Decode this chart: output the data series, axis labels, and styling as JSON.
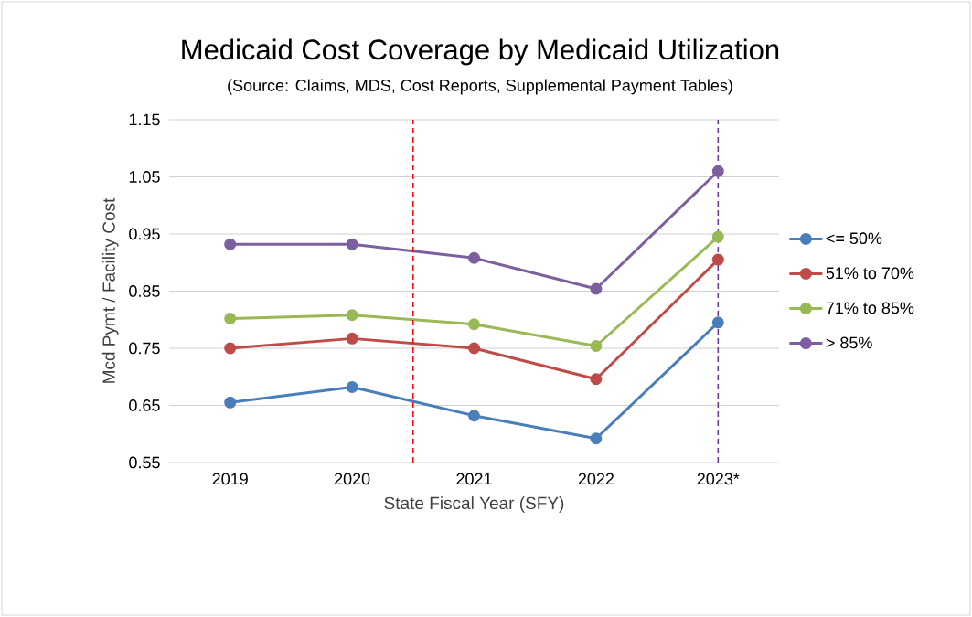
{
  "chart_data": {
    "type": "line",
    "title": "Medicaid Cost Coverage by Medicaid Utilization",
    "subtitle": "(Source: Claims, MDS, Cost Reports, Supplemental Payment Tables)",
    "xlabel": "State Fiscal Year (SFY)",
    "ylabel": "Mcd Pymt / Facility Cost",
    "x": [
      2019,
      2020,
      2021,
      2022,
      2023
    ],
    "series": [
      {
        "name": "<= 50%",
        "color": "#4a7ebb",
        "values": [
          0.655,
          0.682,
          0.632,
          0.592,
          0.795
        ]
      },
      {
        "name": "51% to 70%",
        "color": "#be4b48",
        "values": [
          0.75,
          0.767,
          0.75,
          0.696,
          0.905
        ]
      },
      {
        "name": "71% to 85%",
        "color": "#98b954",
        "values": [
          0.802,
          0.808,
          0.792,
          0.754,
          0.945
        ]
      },
      {
        "name": "> 85%",
        "color": "#7d5fa0",
        "values": [
          0.932,
          0.932,
          0.908,
          0.854,
          1.06
        ]
      }
    ],
    "xlim": [
      2018.5,
      2023.5
    ],
    "ylim": [
      0.55,
      1.15
    ],
    "xticks": [
      2019,
      2020,
      2021,
      2022,
      {
        "value": 2023,
        "label": "2023*"
      }
    ],
    "yticks": [
      0.55,
      0.65,
      0.75,
      0.85,
      0.95,
      1.05,
      1.15
    ],
    "ref_lines": [
      {
        "axis": "x",
        "value": 2020.5,
        "color": "#ff0000",
        "line_style": "dashed"
      },
      {
        "axis": "x",
        "value": 2023,
        "color": "#7030a0",
        "line_style": "dashed"
      }
    ],
    "grid": "y",
    "legend": "right",
    "marker": "circle",
    "line_style": "solid"
  }
}
